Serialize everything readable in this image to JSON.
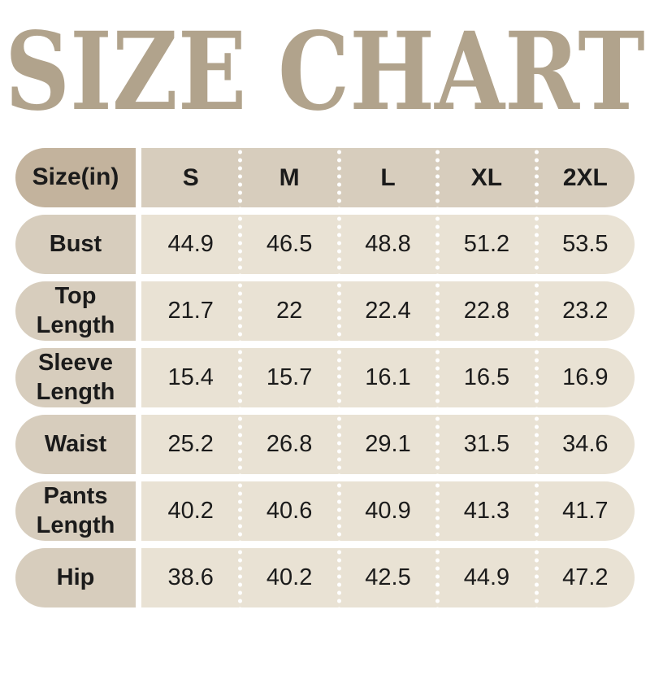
{
  "title": "SIZE CHART",
  "table": {
    "corner_label": "Size(in)",
    "columns": [
      "S",
      "M",
      "L",
      "XL",
      "2XL"
    ],
    "rows": [
      {
        "label": "Bust",
        "values": [
          "44.9",
          "46.5",
          "48.8",
          "51.2",
          "53.5"
        ]
      },
      {
        "label": "Top Length",
        "values": [
          "21.7",
          "22",
          "22.4",
          "22.8",
          "23.2"
        ]
      },
      {
        "label": "Sleeve Length",
        "values": [
          "15.4",
          "15.7",
          "16.1",
          "16.5",
          "16.9"
        ]
      },
      {
        "label": "Waist",
        "values": [
          "25.2",
          "26.8",
          "29.1",
          "31.5",
          "34.6"
        ]
      },
      {
        "label": "Pants Length",
        "values": [
          "40.2",
          "40.6",
          "40.9",
          "41.3",
          "41.7"
        ]
      },
      {
        "label": "Hip",
        "values": [
          "38.6",
          "40.2",
          "42.5",
          "44.9",
          "47.2"
        ]
      }
    ]
  },
  "colors": {
    "title": "#b1a38c",
    "header_corner_bg": "#c3b39d",
    "header_band_bg": "#d7cdbd",
    "row_label_bg": "#d7cdbd",
    "row_band_bg": "#e9e2d4",
    "text": "#1b1b1b",
    "background": "#ffffff",
    "separator_dots": "#ffffff"
  },
  "chart_data": {
    "type": "table",
    "title": "SIZE CHART",
    "columns": [
      "Size(in)",
      "S",
      "M",
      "L",
      "XL",
      "2XL"
    ],
    "rows": [
      [
        "Bust",
        44.9,
        46.5,
        48.8,
        51.2,
        53.5
      ],
      [
        "Top Length",
        21.7,
        22,
        22.4,
        22.8,
        23.2
      ],
      [
        "Sleeve Length",
        15.4,
        15.7,
        16.1,
        16.5,
        16.9
      ],
      [
        "Waist",
        25.2,
        26.8,
        29.1,
        31.5,
        34.6
      ],
      [
        "Pants Length",
        40.2,
        40.6,
        40.9,
        41.3,
        41.7
      ],
      [
        "Hip",
        38.6,
        40.2,
        42.5,
        44.9,
        47.2
      ]
    ]
  }
}
